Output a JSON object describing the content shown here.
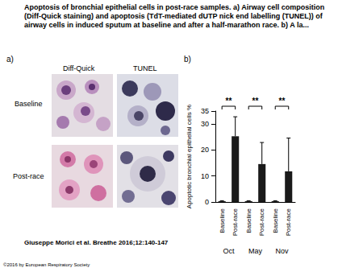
{
  "title": "Apoptosis of bronchial epithelial cells in post-race samples. a) Airway cell composition (Diff-Quick staining) and apoptosis (TdT-mediated dUTP nick end labelling (TUNEL)) of airway cells in induced sputum at baseline and after a half-marathon race. b) A la...",
  "panel_a": {
    "label": "a)",
    "columns": [
      "Diff-Quick",
      "TUNEL"
    ],
    "rows": [
      "Baseline",
      "Post-race"
    ]
  },
  "chart_data": {
    "label": "b)",
    "type": "bar",
    "categories": [
      "Baseline",
      "Post-race",
      "Baseline",
      "Post-race",
      "Baseline",
      "Post-race"
    ],
    "groups": [
      "Oct",
      "May",
      "Nov"
    ],
    "values": [
      0.3,
      25.3,
      0.3,
      14.6,
      0.3,
      11.8
    ],
    "errors": [
      0.2,
      7.5,
      0.2,
      8.3,
      0.2,
      12.8
    ],
    "color": "#1a1a1a",
    "ylabel": "Apoptotic bronchial epithelial cells %",
    "ylim": [
      0,
      35
    ],
    "yticks": [
      0,
      10,
      20,
      30
    ],
    "grid": false,
    "annotations": [
      {
        "text": "**",
        "group": "Oct"
      },
      {
        "text": "**",
        "group": "May"
      },
      {
        "text": "**",
        "group": "Nov"
      }
    ]
  },
  "citation": "Giuseppe Morici et al. Breathe 2016;12:140-147",
  "copyright": "©2016 by European Respiratory Society"
}
